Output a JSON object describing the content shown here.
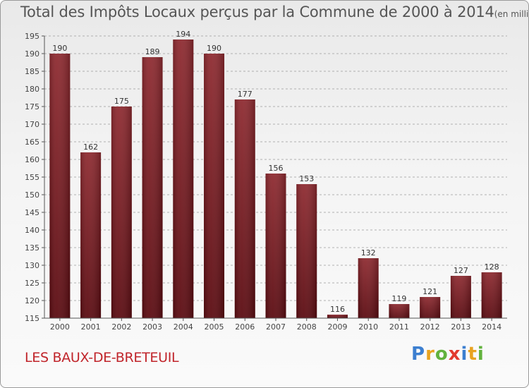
{
  "title": {
    "main": "Total des Impôts Locaux perçus par la Commune de 2000 à 2014",
    "unit": "(en milliers d'€)"
  },
  "commune": "LES BAUX-DE-BRETEUIL",
  "logo": {
    "text": "Proxiti",
    "letters": [
      {
        "char": "P",
        "color": "#3c7fd0"
      },
      {
        "char": "r",
        "color": "#e8a320"
      },
      {
        "char": "o",
        "color": "#62b23d"
      },
      {
        "char": "x",
        "color": "#e23a2e"
      },
      {
        "char": "i",
        "color": "#3c7fd0"
      },
      {
        "char": "t",
        "color": "#e8a320"
      },
      {
        "char": "i",
        "color": "#62b23d"
      }
    ]
  },
  "chart_data": {
    "type": "bar",
    "title": "Total des Impôts Locaux perçus par la Commune de 2000 à 2014",
    "xlabel": "",
    "ylabel": "en milliers d'€",
    "categories": [
      "2000",
      "2001",
      "2002",
      "2003",
      "2004",
      "2005",
      "2006",
      "2007",
      "2008",
      "2009",
      "2010",
      "2011",
      "2012",
      "2013",
      "2014"
    ],
    "values": [
      190,
      162,
      175,
      189,
      194,
      190,
      177,
      156,
      153,
      116,
      132,
      119,
      121,
      127,
      128
    ],
    "ylim": [
      115,
      195
    ],
    "yticks": [
      115,
      120,
      125,
      130,
      135,
      140,
      145,
      150,
      155,
      160,
      165,
      170,
      175,
      180,
      185,
      190,
      195
    ],
    "grid": true,
    "bar_color": "#7a1a20",
    "legend": "none"
  }
}
